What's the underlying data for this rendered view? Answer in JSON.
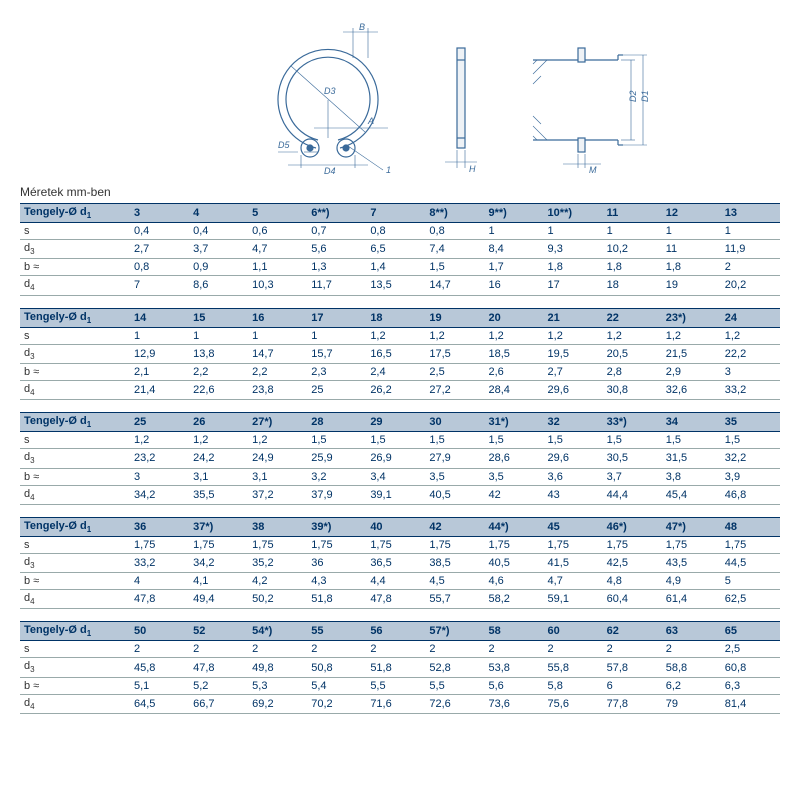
{
  "caption": "Méretek mm-ben",
  "header_label_html": "Tengely-Ø d<sub>1</sub>",
  "row_labels_html": [
    "s",
    "d<sub>3</sub>",
    "b ≈",
    "d<sub>4</sub>"
  ],
  "diagram_labels": {
    "front": [
      "B",
      "D3",
      "A",
      "D5",
      "D4",
      "1"
    ],
    "side": [
      "H"
    ],
    "section": [
      "M",
      "D1",
      "D2"
    ]
  },
  "colors": {
    "header_bg": "#b8c8d8",
    "header_text": "#003366",
    "cell_text": "#003366",
    "rule": "#9aa",
    "diagram_stroke": "#3a6a9a"
  },
  "blocks": [
    {
      "headers": [
        "3",
        "4",
        "5",
        "6**)",
        "7",
        "8**)",
        "9**)",
        "10**)",
        "11",
        "12",
        "13"
      ],
      "rows": [
        [
          "0,4",
          "0,4",
          "0,6",
          "0,7",
          "0,8",
          "0,8",
          "1",
          "1",
          "1",
          "1",
          "1"
        ],
        [
          "2,7",
          "3,7",
          "4,7",
          "5,6",
          "6,5",
          "7,4",
          "8,4",
          "9,3",
          "10,2",
          "11",
          "11,9"
        ],
        [
          "0,8",
          "0,9",
          "1,1",
          "1,3",
          "1,4",
          "1,5",
          "1,7",
          "1,8",
          "1,8",
          "1,8",
          "2"
        ],
        [
          "7",
          "8,6",
          "10,3",
          "11,7",
          "13,5",
          "14,7",
          "16",
          "17",
          "18",
          "19",
          "20,2"
        ]
      ]
    },
    {
      "headers": [
        "14",
        "15",
        "16",
        "17",
        "18",
        "19",
        "20",
        "21",
        "22",
        "23*)",
        "24"
      ],
      "rows": [
        [
          "1",
          "1",
          "1",
          "1",
          "1,2",
          "1,2",
          "1,2",
          "1,2",
          "1,2",
          "1,2",
          "1,2"
        ],
        [
          "12,9",
          "13,8",
          "14,7",
          "15,7",
          "16,5",
          "17,5",
          "18,5",
          "19,5",
          "20,5",
          "21,5",
          "22,2"
        ],
        [
          "2,1",
          "2,2",
          "2,2",
          "2,3",
          "2,4",
          "2,5",
          "2,6",
          "2,7",
          "2,8",
          "2,9",
          "3"
        ],
        [
          "21,4",
          "22,6",
          "23,8",
          "25",
          "26,2",
          "27,2",
          "28,4",
          "29,6",
          "30,8",
          "32,6",
          "33,2"
        ]
      ]
    },
    {
      "headers": [
        "25",
        "26",
        "27*)",
        "28",
        "29",
        "30",
        "31*)",
        "32",
        "33*)",
        "34",
        "35"
      ],
      "rows": [
        [
          "1,2",
          "1,2",
          "1,2",
          "1,5",
          "1,5",
          "1,5",
          "1,5",
          "1,5",
          "1,5",
          "1,5",
          "1,5"
        ],
        [
          "23,2",
          "24,2",
          "24,9",
          "25,9",
          "26,9",
          "27,9",
          "28,6",
          "29,6",
          "30,5",
          "31,5",
          "32,2"
        ],
        [
          "3",
          "3,1",
          "3,1",
          "3,2",
          "3,4",
          "3,5",
          "3,5",
          "3,6",
          "3,7",
          "3,8",
          "3,9"
        ],
        [
          "34,2",
          "35,5",
          "37,2",
          "37,9",
          "39,1",
          "40,5",
          "42",
          "43",
          "44,4",
          "45,4",
          "46,8"
        ]
      ]
    },
    {
      "headers": [
        "36",
        "37*)",
        "38",
        "39*)",
        "40",
        "42",
        "44*)",
        "45",
        "46*)",
        "47*)",
        "48"
      ],
      "rows": [
        [
          "1,75",
          "1,75",
          "1,75",
          "1,75",
          "1,75",
          "1,75",
          "1,75",
          "1,75",
          "1,75",
          "1,75",
          "1,75"
        ],
        [
          "33,2",
          "34,2",
          "35,2",
          "36",
          "36,5",
          "38,5",
          "40,5",
          "41,5",
          "42,5",
          "43,5",
          "44,5"
        ],
        [
          "4",
          "4,1",
          "4,2",
          "4,3",
          "4,4",
          "4,5",
          "4,6",
          "4,7",
          "4,8",
          "4,9",
          "5"
        ],
        [
          "47,8",
          "49,4",
          "50,2",
          "51,8",
          "47,8",
          "55,7",
          "58,2",
          "59,1",
          "60,4",
          "61,4",
          "62,5"
        ]
      ]
    },
    {
      "headers": [
        "50",
        "52",
        "54*)",
        "55",
        "56",
        "57*)",
        "58",
        "60",
        "62",
        "63",
        "65"
      ],
      "rows": [
        [
          "2",
          "2",
          "2",
          "2",
          "2",
          "2",
          "2",
          "2",
          "2",
          "2",
          "2,5"
        ],
        [
          "45,8",
          "47,8",
          "49,8",
          "50,8",
          "51,8",
          "52,8",
          "53,8",
          "55,8",
          "57,8",
          "58,8",
          "60,8"
        ],
        [
          "5,1",
          "5,2",
          "5,3",
          "5,4",
          "5,5",
          "5,5",
          "5,6",
          "5,8",
          "6",
          "6,2",
          "6,3"
        ],
        [
          "64,5",
          "66,7",
          "69,2",
          "70,2",
          "71,6",
          "72,6",
          "73,6",
          "75,6",
          "77,8",
          "79",
          "81,4"
        ]
      ]
    }
  ]
}
